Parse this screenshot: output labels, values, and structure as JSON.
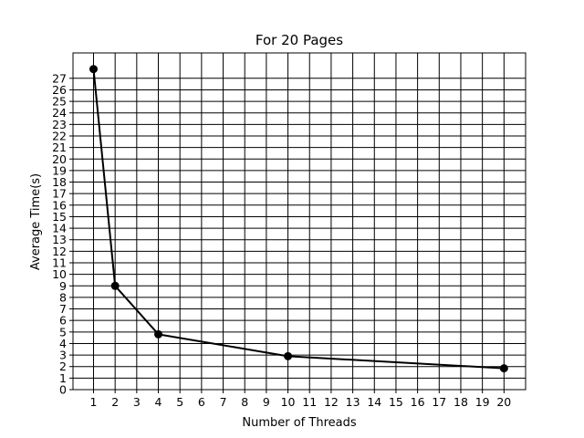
{
  "chart_data": {
    "type": "line",
    "title": "For 20 Pages",
    "xlabel": "Number of Threads",
    "ylabel": "Average Time(s)",
    "x_ticks": [
      1,
      2,
      3,
      4,
      5,
      6,
      7,
      8,
      9,
      10,
      11,
      12,
      13,
      14,
      15,
      16,
      17,
      18,
      19,
      20
    ],
    "y_ticks": [
      0,
      1,
      2,
      3,
      4,
      5,
      6,
      7,
      8,
      9,
      10,
      11,
      12,
      13,
      14,
      15,
      16,
      17,
      18,
      19,
      20,
      21,
      22,
      23,
      24,
      25,
      26,
      27
    ],
    "xlim": [
      0.05,
      21.0
    ],
    "ylim": [
      0,
      29.2
    ],
    "grid": true,
    "series": [
      {
        "x": [
          1,
          2,
          4,
          10,
          20
        ],
        "y": [
          27.8,
          9.0,
          4.8,
          2.9,
          1.85
        ],
        "color": "#000000",
        "marker": "circle"
      }
    ]
  }
}
